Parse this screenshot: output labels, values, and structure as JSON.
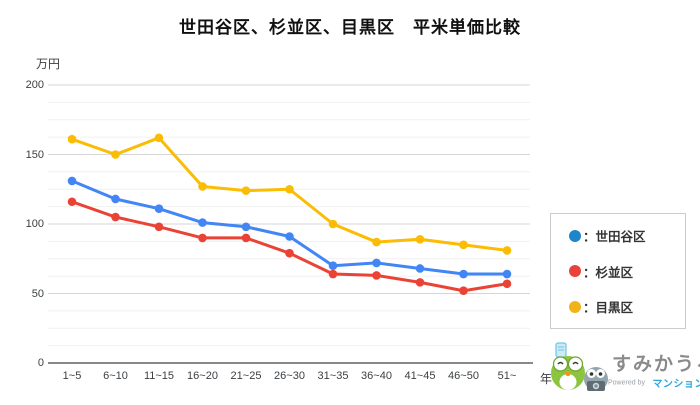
{
  "chart_data": {
    "type": "line",
    "title": "世田谷区、杉並区、目黒区　平米単価比較",
    "y_unit": "万円",
    "x_unit": "年",
    "categories": [
      "1~5",
      "6~10",
      "11~15",
      "16~20",
      "21~25",
      "26~30",
      "31~35",
      "36~40",
      "41~45",
      "46~50",
      "51~"
    ],
    "series": [
      {
        "key": "setagaya",
        "name": "世田谷区",
        "color": "#4285F4",
        "legend_color": "#1E86C8",
        "values": [
          131,
          118,
          111,
          101,
          98,
          91,
          70,
          72,
          68,
          64,
          64
        ]
      },
      {
        "key": "suginami",
        "name": "杉並区",
        "color": "#EA4335",
        "legend_color": "#E8433A",
        "values": [
          116,
          105,
          98,
          90,
          90,
          79,
          64,
          63,
          58,
          52,
          57
        ]
      },
      {
        "key": "meguro",
        "name": "目黒区",
        "color": "#FBBC04",
        "legend_color": "#F0B41A",
        "values": [
          161,
          150,
          162,
          127,
          124,
          125,
          100,
          87,
          89,
          85,
          81
        ]
      }
    ],
    "ylim": [
      0,
      200
    ],
    "y_major_ticks": [
      0,
      50,
      100,
      150,
      200
    ],
    "y_minor_step": 12.5,
    "grid": true,
    "legend_position": "right"
  },
  "legend": {
    "colon": "："
  },
  "branding": {
    "logo_text": "すみかうる",
    "powered_by": "Powered by",
    "powered_by_brand": "マンションナビ"
  },
  "colors": {
    "grid_minor": "#f1f1f1",
    "grid_major": "#d6d6d6",
    "axis_line": "#424242",
    "title_text": "#111111",
    "tick_text": "#3c4043",
    "logo_text": "#8a8a8a",
    "brand_blue": "#29a7de",
    "mascot_green": "#8bc53f",
    "mascot_gray": "#95a5ae"
  }
}
